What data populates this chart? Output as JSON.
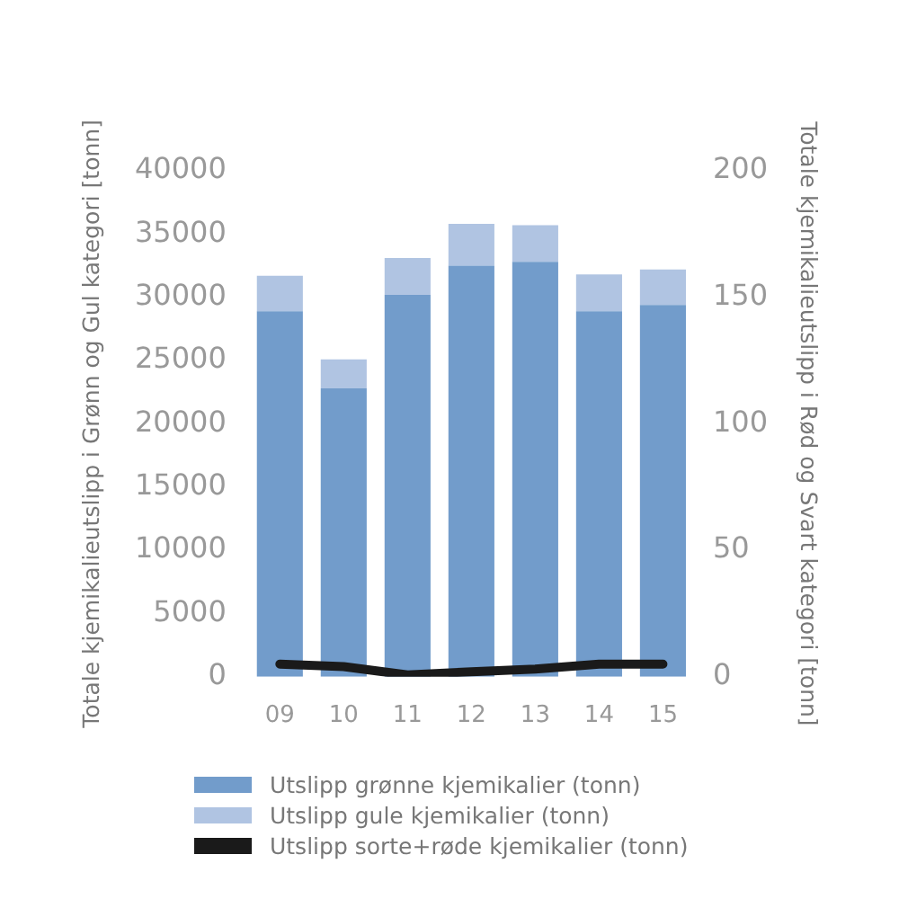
{
  "chart_data": {
    "type": "bar",
    "stacked": true,
    "categories": [
      "09",
      "10",
      "11",
      "12",
      "13",
      "14",
      "15"
    ],
    "series": [
      {
        "name": "Utslipp grønne kjemikalier (tonn)",
        "color": "#729ccb",
        "values": [
          28900,
          22800,
          30200,
          32500,
          32800,
          28900,
          29400
        ]
      },
      {
        "name": "Utslipp gule kjemikalier (tonn)",
        "color": "#b0c4e2",
        "values": [
          2800,
          2300,
          2900,
          3300,
          2900,
          2900,
          2800
        ]
      },
      {
        "name": "Utslipp sorte+røde kjemikalier (tonn)",
        "type": "line",
        "axis": "y2",
        "color": "#1a1a1a",
        "values": [
          5,
          4,
          0.7,
          2,
          3,
          5,
          5
        ]
      }
    ],
    "ylabel": "Totale kjemikalieutslipp i Grønn og Gul kategori [tonn]",
    "y2label": "Totale kjemikalieutslipp i Rød og Svart kategori [tonn]",
    "ylim": [
      0,
      40000
    ],
    "yticks": [
      0,
      5000,
      10000,
      15000,
      20000,
      25000,
      30000,
      35000,
      40000
    ],
    "y2lim": [
      0,
      200
    ],
    "y2ticks": [
      0,
      50,
      100,
      150,
      200
    ],
    "grid": false,
    "legend": "bottom",
    "marker": "none"
  }
}
